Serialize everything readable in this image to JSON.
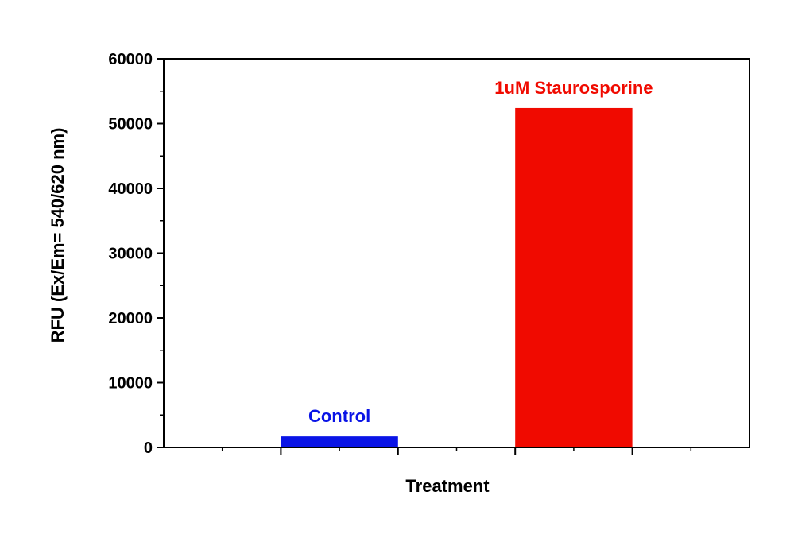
{
  "chart_data": {
    "type": "bar",
    "title": "",
    "xlabel": "Treatment",
    "ylabel": "RFU (Ex/Em= 540/620 nm)",
    "ylim": [
      0,
      60000
    ],
    "yticks": [
      0,
      10000,
      20000,
      30000,
      40000,
      50000,
      60000
    ],
    "grid": false,
    "legend": "none",
    "categories": [
      "Control",
      "1uM Staurosporine"
    ],
    "values": [
      1700,
      52400
    ],
    "colors": [
      "#0a14e6",
      "#f00a00"
    ]
  }
}
